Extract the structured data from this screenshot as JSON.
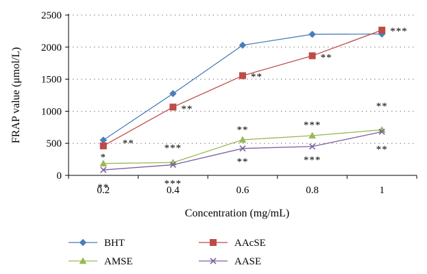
{
  "chart_data": {
    "type": "line",
    "x": [
      "0.2",
      "0.4",
      "0.6",
      "0.8",
      "1"
    ],
    "xlabel": "Concentration (mg/mL)",
    "ylabel": "FRAP value (μmol/L)",
    "ylim": [
      0,
      2500
    ],
    "yticks": [
      "0",
      "500",
      "1000",
      "1500",
      "2000",
      "2500"
    ],
    "grid": "horizontal-dotted",
    "legend_position": "bottom",
    "series": [
      {
        "name": "BHT",
        "color": "#4a7ebb",
        "marker": "diamond",
        "values": [
          550,
          1275,
          2030,
          2200,
          2205
        ],
        "annotations": [
          "",
          "",
          "",
          "",
          ""
        ]
      },
      {
        "name": "AAcSE",
        "color": "#be4b48",
        "marker": "square",
        "values": [
          460,
          1065,
          1555,
          1865,
          2265
        ],
        "annotations": [
          "*",
          "**",
          "**",
          "**",
          "***"
        ]
      },
      {
        "name": "AMSE",
        "color": "#98b954",
        "marker": "triangle",
        "values": [
          185,
          200,
          555,
          620,
          710
        ],
        "annotations": [
          "**",
          "***",
          "**",
          "***",
          "**"
        ]
      },
      {
        "name": "AASE",
        "color": "#7d60a0",
        "marker": "x",
        "values": [
          85,
          165,
          420,
          450,
          680
        ],
        "annotations": [
          "**",
          "***",
          "**",
          "***",
          "**"
        ]
      }
    ]
  }
}
